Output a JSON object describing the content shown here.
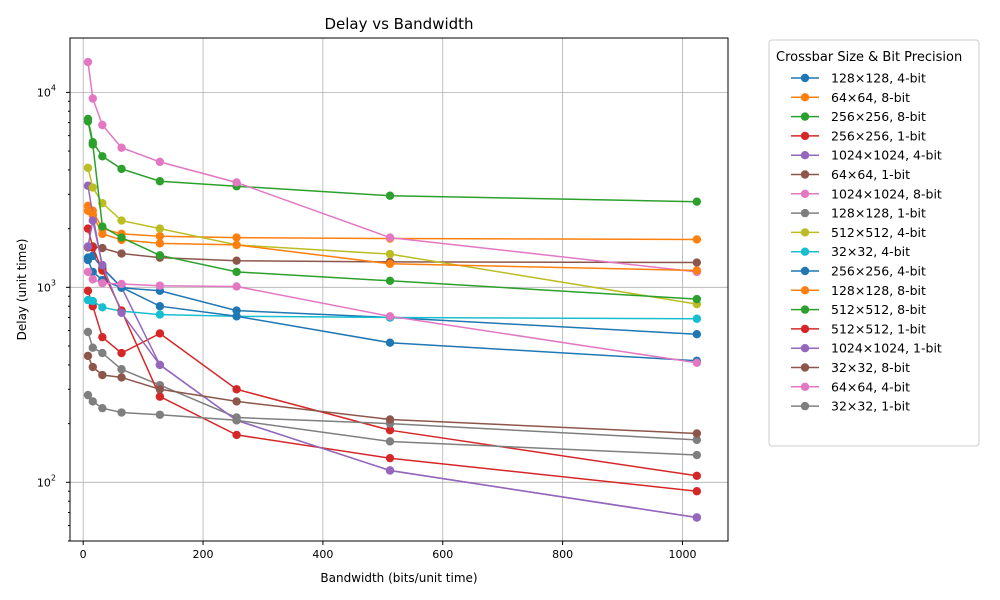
{
  "chart_data": {
    "type": "line",
    "title": "Delay vs Bandwidth",
    "xlabel": "Bandwidth (bits/unit time)",
    "ylabel": "Delay (unit time)",
    "x_scale": "linear",
    "y_scale": "log",
    "xlim": [
      -22,
      1076
    ],
    "ylim": [
      50,
      19000
    ],
    "x_ticks": [
      0,
      200,
      400,
      600,
      800,
      1000
    ],
    "x_tick_labels": [
      "0",
      "200",
      "400",
      "600",
      "800",
      "1000"
    ],
    "y_ticks": [
      100,
      1000,
      10000
    ],
    "y_tick_labels": [
      "10",
      "10",
      "10"
    ],
    "y_tick_exponents": [
      "2",
      "3",
      "4"
    ],
    "grid": true,
    "legend_title": "Crossbar Size & Bit Precision",
    "legend_position": "outside-right",
    "x": [
      8,
      16,
      32,
      64,
      128,
      256,
      512,
      1024
    ],
    "series": [
      {
        "name": "128×128, 4-bit",
        "color": "#1f77b4",
        "values": [
          1380,
          1200,
          1090,
          995,
          960,
          760,
          700,
          575
        ]
      },
      {
        "name": "64×64, 8-bit",
        "color": "#ff7f0e",
        "values": [
          2620,
          2470,
          2000,
          1880,
          1830,
          1800,
          1780,
          1760
        ]
      },
      {
        "name": "256×256, 8-bit",
        "color": "#2ca02c",
        "values": [
          7300,
          5550,
          4700,
          4050,
          3500,
          3300,
          2950,
          2750
        ]
      },
      {
        "name": "256×256, 1-bit",
        "color": "#d62728",
        "values": [
          960,
          800,
          555,
          460,
          580,
          300,
          185,
          108
        ]
      },
      {
        "name": "1024×1024, 4-bit",
        "color": "#9467bd",
        "values": [
          3320,
          2350,
          1260,
          1000,
          400,
          208,
          115,
          66
        ]
      },
      {
        "name": "64×64, 1-bit",
        "color": "#8c564b",
        "values": [
          1600,
          1620,
          1590,
          1490,
          1420,
          1370,
          1350,
          1340
        ]
      },
      {
        "name": "1024×1024, 8-bit",
        "color": "#e377c2",
        "values": [
          14300,
          9300,
          6800,
          5200,
          4400,
          3450,
          1800,
          1200
        ]
      },
      {
        "name": "128×128, 1-bit",
        "color": "#7f7f7f",
        "values": [
          590,
          490,
          460,
          380,
          315,
          215,
          200,
          165
        ]
      },
      {
        "name": "512×512, 4-bit",
        "color": "#bcbd22",
        "values": [
          4100,
          3250,
          2700,
          2200,
          2000,
          1650,
          1480,
          820
        ]
      },
      {
        "name": "32×32, 4-bit",
        "color": "#17becf",
        "values": [
          860,
          850,
          790,
          755,
          725,
          710,
          700,
          690
        ]
      },
      {
        "name": "256×256, 4-bit",
        "color": "#1f77b4",
        "values": [
          1420,
          1450,
          1250,
          1000,
          800,
          710,
          520,
          420
        ]
      },
      {
        "name": "128×128, 8-bit",
        "color": "#ff7f0e",
        "values": [
          2470,
          2350,
          1880,
          1750,
          1680,
          1650,
          1320,
          1220
        ]
      },
      {
        "name": "512×512, 8-bit",
        "color": "#2ca02c",
        "values": [
          7100,
          5400,
          2050,
          1800,
          1460,
          1200,
          1080,
          870
        ]
      },
      {
        "name": "512×512, 1-bit",
        "color": "#d62728",
        "values": [
          2000,
          1600,
          1220,
          760,
          275,
          175,
          133,
          90
        ]
      },
      {
        "name": "1024×1024, 1-bit",
        "color": "#9467bd",
        "values": [
          1620,
          2200,
          1300,
          740,
          400,
          208,
          115,
          66
        ]
      },
      {
        "name": "32×32, 8-bit",
        "color": "#8c564b",
        "values": [
          445,
          390,
          355,
          345,
          300,
          260,
          210,
          178
        ]
      },
      {
        "name": "64×64, 4-bit",
        "color": "#e377c2",
        "values": [
          1200,
          1100,
          1050,
          1040,
          1020,
          1010,
          710,
          410
        ]
      },
      {
        "name": "32×32, 1-bit",
        "color": "#7f7f7f",
        "values": [
          280,
          260,
          240,
          228,
          222,
          208,
          162,
          138
        ]
      }
    ]
  }
}
